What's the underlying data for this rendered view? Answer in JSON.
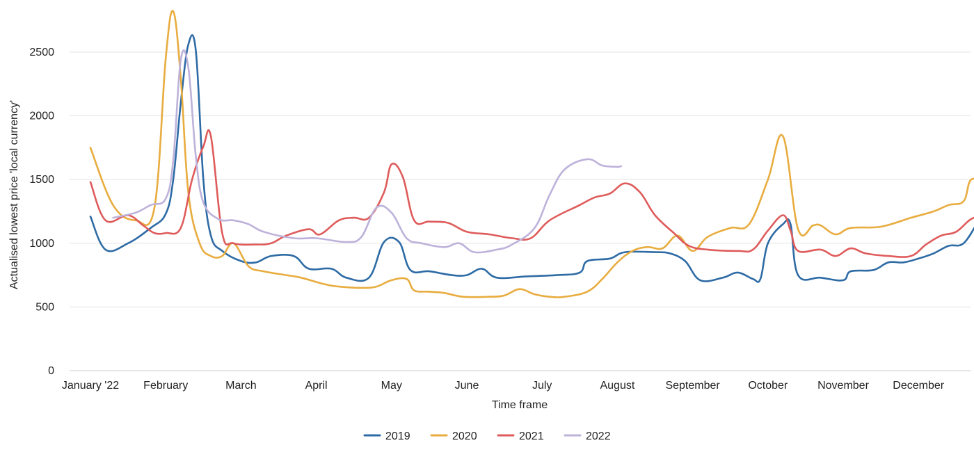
{
  "chart_data": {
    "type": "line",
    "xlabel": "Time frame",
    "ylabel": "Actualised lowest price 'local currency'",
    "ylim": [
      0,
      2800
    ],
    "yticks": [
      0,
      500,
      1000,
      1500,
      2000,
      2500
    ],
    "grid": true,
    "legend_position": "bottom",
    "month_labels": [
      "January '22",
      "February",
      "March",
      "April",
      "May",
      "June",
      "July",
      "August",
      "September",
      "October",
      "November",
      "December"
    ],
    "series": [
      {
        "name": "2019",
        "color": "#2e6ba5",
        "points": [
          [
            0,
            1210
          ],
          [
            0.2,
            950
          ],
          [
            0.5,
            1000
          ],
          [
            0.8,
            1120
          ],
          [
            1.0,
            1230
          ],
          [
            1.1,
            1500
          ],
          [
            1.2,
            2100
          ],
          [
            1.3,
            2560
          ],
          [
            1.4,
            2510
          ],
          [
            1.5,
            1500
          ],
          [
            1.6,
            1060
          ],
          [
            1.75,
            940
          ],
          [
            2.0,
            860
          ],
          [
            2.2,
            850
          ],
          [
            2.4,
            900
          ],
          [
            2.7,
            900
          ],
          [
            2.9,
            800
          ],
          [
            3.2,
            800
          ],
          [
            3.4,
            730
          ],
          [
            3.7,
            730
          ],
          [
            3.9,
            1010
          ],
          [
            4.1,
            1010
          ],
          [
            4.25,
            790
          ],
          [
            4.5,
            780
          ],
          [
            4.8,
            750
          ],
          [
            5.0,
            750
          ],
          [
            5.2,
            800
          ],
          [
            5.4,
            730
          ],
          [
            5.8,
            740
          ],
          [
            6.2,
            750
          ],
          [
            6.5,
            770
          ],
          [
            6.6,
            860
          ],
          [
            6.9,
            880
          ],
          [
            7.1,
            930
          ],
          [
            7.5,
            930
          ],
          [
            7.7,
            920
          ],
          [
            7.9,
            860
          ],
          [
            8.1,
            710
          ],
          [
            8.4,
            730
          ],
          [
            8.6,
            770
          ],
          [
            8.8,
            720
          ],
          [
            8.9,
            720
          ],
          [
            9.0,
            1000
          ],
          [
            9.2,
            1150
          ],
          [
            9.3,
            1150
          ],
          [
            9.4,
            750
          ],
          [
            9.7,
            730
          ],
          [
            10.0,
            710
          ],
          [
            10.1,
            780
          ],
          [
            10.4,
            790
          ],
          [
            10.6,
            850
          ],
          [
            10.8,
            850
          ],
          [
            11.0,
            880
          ],
          [
            11.2,
            920
          ],
          [
            11.4,
            980
          ],
          [
            11.6,
            1000
          ],
          [
            11.8,
            1180
          ]
        ]
      },
      {
        "name": "2020",
        "color": "#e8ac3f",
        "points": [
          [
            0,
            1750
          ],
          [
            0.3,
            1300
          ],
          [
            0.6,
            1180
          ],
          [
            0.85,
            1280
          ],
          [
            1.0,
            2450
          ],
          [
            1.1,
            2820
          ],
          [
            1.2,
            2300
          ],
          [
            1.3,
            1400
          ],
          [
            1.45,
            1000
          ],
          [
            1.6,
            900
          ],
          [
            1.75,
            900
          ],
          [
            1.9,
            1000
          ],
          [
            2.1,
            820
          ],
          [
            2.3,
            780
          ],
          [
            2.6,
            750
          ],
          [
            2.8,
            730
          ],
          [
            3.1,
            680
          ],
          [
            3.3,
            660
          ],
          [
            3.6,
            650
          ],
          [
            3.8,
            660
          ],
          [
            4.0,
            710
          ],
          [
            4.2,
            720
          ],
          [
            4.3,
            630
          ],
          [
            4.5,
            620
          ],
          [
            4.7,
            610
          ],
          [
            4.95,
            580
          ],
          [
            5.3,
            580
          ],
          [
            5.5,
            590
          ],
          [
            5.7,
            640
          ],
          [
            5.9,
            600
          ],
          [
            6.1,
            580
          ],
          [
            6.3,
            580
          ],
          [
            6.6,
            620
          ],
          [
            6.8,
            720
          ],
          [
            7.0,
            850
          ],
          [
            7.2,
            940
          ],
          [
            7.4,
            970
          ],
          [
            7.6,
            960
          ],
          [
            7.8,
            1060
          ],
          [
            8.0,
            940
          ],
          [
            8.2,
            1050
          ],
          [
            8.5,
            1120
          ],
          [
            8.75,
            1150
          ],
          [
            9.0,
            1500
          ],
          [
            9.2,
            1840
          ],
          [
            9.4,
            1110
          ],
          [
            9.6,
            1140
          ],
          [
            9.7,
            1140
          ],
          [
            9.9,
            1070
          ],
          [
            10.1,
            1120
          ],
          [
            10.5,
            1130
          ],
          [
            10.9,
            1200
          ],
          [
            11.2,
            1250
          ],
          [
            11.4,
            1300
          ],
          [
            11.6,
            1330
          ],
          [
            11.7,
            1500
          ],
          [
            11.9,
            1470
          ]
        ]
      },
      {
        "name": "2021",
        "color": "#df5b5b",
        "points": [
          [
            0,
            1480
          ],
          [
            0.2,
            1180
          ],
          [
            0.5,
            1220
          ],
          [
            0.7,
            1140
          ],
          [
            0.85,
            1080
          ],
          [
            1.0,
            1080
          ],
          [
            1.2,
            1120
          ],
          [
            1.35,
            1500
          ],
          [
            1.5,
            1760
          ],
          [
            1.6,
            1840
          ],
          [
            1.75,
            1080
          ],
          [
            1.9,
            1000
          ],
          [
            2.2,
            990
          ],
          [
            2.4,
            1000
          ],
          [
            2.6,
            1060
          ],
          [
            2.9,
            1110
          ],
          [
            3.05,
            1070
          ],
          [
            3.3,
            1180
          ],
          [
            3.5,
            1200
          ],
          [
            3.7,
            1200
          ],
          [
            3.9,
            1400
          ],
          [
            4.0,
            1620
          ],
          [
            4.15,
            1520
          ],
          [
            4.3,
            1180
          ],
          [
            4.5,
            1170
          ],
          [
            4.75,
            1160
          ],
          [
            5.0,
            1090
          ],
          [
            5.3,
            1070
          ],
          [
            5.6,
            1040
          ],
          [
            5.85,
            1040
          ],
          [
            6.1,
            1180
          ],
          [
            6.5,
            1300
          ],
          [
            6.7,
            1360
          ],
          [
            6.9,
            1390
          ],
          [
            7.1,
            1470
          ],
          [
            7.3,
            1400
          ],
          [
            7.5,
            1220
          ],
          [
            7.75,
            1080
          ],
          [
            7.95,
            980
          ],
          [
            8.2,
            950
          ],
          [
            8.6,
            940
          ],
          [
            8.8,
            950
          ],
          [
            9.0,
            1100
          ],
          [
            9.2,
            1220
          ],
          [
            9.3,
            1100
          ],
          [
            9.4,
            940
          ],
          [
            9.7,
            950
          ],
          [
            9.9,
            900
          ],
          [
            10.1,
            960
          ],
          [
            10.3,
            920
          ],
          [
            10.6,
            900
          ],
          [
            10.9,
            900
          ],
          [
            11.1,
            990
          ],
          [
            11.3,
            1060
          ],
          [
            11.5,
            1090
          ],
          [
            11.7,
            1190
          ],
          [
            11.9,
            1230
          ]
        ]
      },
      {
        "name": "2022",
        "color": "#bdb2da",
        "points": [
          [
            0.3,
            1200
          ],
          [
            0.6,
            1240
          ],
          [
            0.8,
            1300
          ],
          [
            1.0,
            1350
          ],
          [
            1.1,
            1650
          ],
          [
            1.2,
            2440
          ],
          [
            1.3,
            2380
          ],
          [
            1.4,
            1680
          ],
          [
            1.5,
            1320
          ],
          [
            1.7,
            1190
          ],
          [
            1.9,
            1180
          ],
          [
            2.1,
            1150
          ],
          [
            2.3,
            1090
          ],
          [
            2.7,
            1040
          ],
          [
            3.0,
            1040
          ],
          [
            3.4,
            1010
          ],
          [
            3.6,
            1050
          ],
          [
            3.8,
            1280
          ],
          [
            4.0,
            1240
          ],
          [
            4.2,
            1040
          ],
          [
            4.4,
            1000
          ],
          [
            4.7,
            970
          ],
          [
            4.9,
            1000
          ],
          [
            5.1,
            930
          ],
          [
            5.4,
            950
          ],
          [
            5.6,
            990
          ],
          [
            5.9,
            1120
          ],
          [
            6.1,
            1380
          ],
          [
            6.3,
            1580
          ],
          [
            6.6,
            1660
          ],
          [
            6.8,
            1610
          ],
          [
            7.0,
            1600
          ],
          [
            7.05,
            1605
          ]
        ]
      }
    ]
  }
}
